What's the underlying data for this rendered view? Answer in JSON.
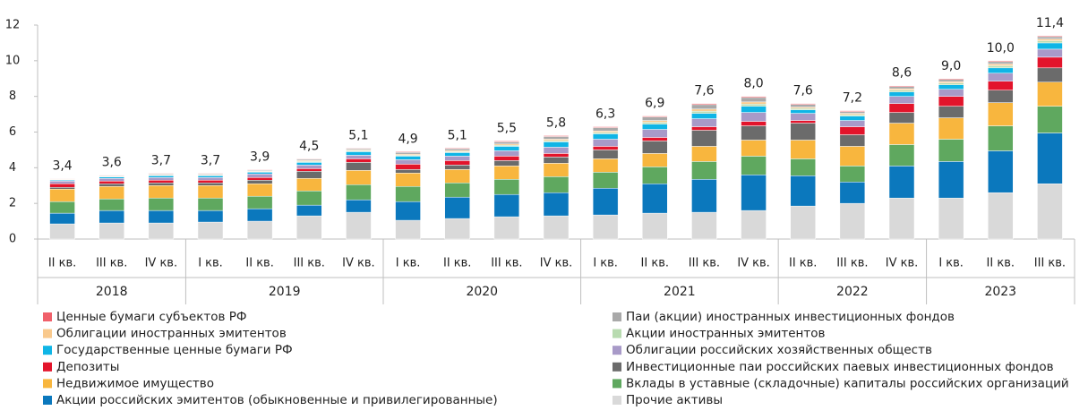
{
  "chart_data": {
    "type": "stacked_bar",
    "groups": [
      {
        "label": "2018",
        "categories": [
          "II кв.",
          "III кв.",
          "IV кв."
        ]
      },
      {
        "label": "2019",
        "categories": [
          "I кв.",
          "II кв.",
          "III кв.",
          "IV кв."
        ]
      },
      {
        "label": "2020",
        "categories": [
          "I кв.",
          "II кв.",
          "III кв.",
          "IV кв."
        ]
      },
      {
        "label": "2021",
        "categories": [
          "I кв.",
          "II кв.",
          "III кв.",
          "IV кв."
        ]
      },
      {
        "label": "2022",
        "categories": [
          "II кв.",
          "III кв.",
          "IV кв."
        ]
      },
      {
        "label": "2023",
        "categories": [
          "I кв.",
          "II кв.",
          "III кв."
        ]
      }
    ],
    "ylim": [
      0,
      12
    ],
    "yticks": [
      0,
      2,
      4,
      6,
      8,
      10,
      12
    ],
    "totals": [
      3.4,
      3.6,
      3.7,
      3.7,
      3.9,
      4.5,
      5.1,
      4.9,
      5.1,
      5.5,
      5.8,
      6.3,
      6.9,
      7.6,
      8.0,
      7.6,
      7.2,
      8.6,
      9.0,
      10.0,
      11.4
    ],
    "total_labels": [
      "3,4",
      "3,6",
      "3,7",
      "3,7",
      "3,9",
      "4,5",
      "5,1",
      "4,9",
      "5,1",
      "5,5",
      "5,8",
      "6,3",
      "6,9",
      "7,6",
      "8,0",
      "7,6",
      "7,2",
      "8,6",
      "9,0",
      "10,0",
      "11,4"
    ],
    "series": [
      {
        "name": "Прочие активы",
        "color": "#d9d9d9",
        "values": [
          0.85,
          0.9,
          0.9,
          0.95,
          1.0,
          1.3,
          1.5,
          1.05,
          1.15,
          1.25,
          1.3,
          1.35,
          1.45,
          1.5,
          1.6,
          1.85,
          2.0,
          2.3,
          2.3,
          2.6,
          3.1
        ]
      },
      {
        "name": "Акции российских эмитентов (обыкновенные и привилегированные)",
        "color": "#0b78bd",
        "values": [
          0.6,
          0.7,
          0.7,
          0.65,
          0.7,
          0.6,
          0.7,
          1.05,
          1.2,
          1.25,
          1.3,
          1.5,
          1.65,
          1.85,
          2.0,
          1.7,
          1.2,
          1.8,
          2.05,
          2.35,
          2.85
        ]
      },
      {
        "name": "Вклады в уставные (складочные) капиталы российских организаций",
        "color": "#5fa85f",
        "values": [
          0.65,
          0.65,
          0.7,
          0.7,
          0.7,
          0.8,
          0.85,
          0.85,
          0.8,
          0.85,
          0.9,
          0.9,
          0.95,
          1.0,
          1.05,
          0.95,
          0.9,
          1.2,
          1.25,
          1.4,
          1.5
        ]
      },
      {
        "name": "Недвижимое имущество",
        "color": "#f8b63e",
        "values": [
          0.7,
          0.7,
          0.7,
          0.7,
          0.7,
          0.7,
          0.8,
          0.75,
          0.75,
          0.75,
          0.75,
          0.75,
          0.75,
          0.85,
          0.9,
          1.05,
          1.1,
          1.2,
          1.2,
          1.3,
          1.35
        ]
      },
      {
        "name": "Инвестиционные паи российских паевых инвестиционных фондов",
        "color": "#6b6b6b",
        "values": [
          0.1,
          0.15,
          0.15,
          0.15,
          0.2,
          0.4,
          0.45,
          0.2,
          0.25,
          0.3,
          0.35,
          0.5,
          0.7,
          0.9,
          0.8,
          0.95,
          0.65,
          0.6,
          0.65,
          0.7,
          0.8
        ]
      },
      {
        "name": "Депозиты",
        "color": "#e3142b",
        "values": [
          0.2,
          0.15,
          0.15,
          0.15,
          0.15,
          0.15,
          0.2,
          0.3,
          0.25,
          0.25,
          0.2,
          0.2,
          0.2,
          0.2,
          0.25,
          0.15,
          0.45,
          0.5,
          0.55,
          0.5,
          0.6
        ]
      },
      {
        "name": "Облигации российских хозяйственных обществ",
        "color": "#a89ac8",
        "values": [
          0.15,
          0.15,
          0.15,
          0.15,
          0.2,
          0.2,
          0.2,
          0.25,
          0.25,
          0.3,
          0.35,
          0.4,
          0.45,
          0.45,
          0.5,
          0.4,
          0.35,
          0.4,
          0.4,
          0.45,
          0.45
        ]
      },
      {
        "name": "Государственные ценные бумаги РФ",
        "color": "#0fb5e6",
        "values": [
          0.05,
          0.08,
          0.1,
          0.1,
          0.1,
          0.15,
          0.2,
          0.2,
          0.2,
          0.25,
          0.3,
          0.3,
          0.3,
          0.3,
          0.35,
          0.2,
          0.25,
          0.25,
          0.25,
          0.3,
          0.35
        ]
      },
      {
        "name": "Акции иностранных эмитентов",
        "color": "#b8dbb0",
        "values": [
          0.02,
          0.03,
          0.03,
          0.03,
          0.03,
          0.05,
          0.05,
          0.05,
          0.05,
          0.06,
          0.07,
          0.08,
          0.1,
          0.12,
          0.12,
          0.08,
          0.08,
          0.1,
          0.1,
          0.12,
          0.12
        ]
      },
      {
        "name": "Облигации иностранных эмитентов",
        "color": "#f9c98d",
        "values": [
          0.03,
          0.03,
          0.04,
          0.04,
          0.04,
          0.05,
          0.05,
          0.06,
          0.06,
          0.07,
          0.08,
          0.08,
          0.1,
          0.12,
          0.12,
          0.07,
          0.07,
          0.08,
          0.08,
          0.1,
          0.1
        ]
      },
      {
        "name": "Паи (акции) иностранных инвестиционных фондов",
        "color": "#a9a9a9",
        "values": [
          0.03,
          0.04,
          0.05,
          0.05,
          0.05,
          0.07,
          0.07,
          0.1,
          0.1,
          0.12,
          0.15,
          0.19,
          0.2,
          0.25,
          0.25,
          0.15,
          0.1,
          0.12,
          0.12,
          0.13,
          0.13
        ]
      },
      {
        "name": "Ценные бумаги субъектов РФ",
        "color": "#f0606a",
        "values": [
          0.02,
          0.02,
          0.03,
          0.03,
          0.03,
          0.03,
          0.03,
          0.04,
          0.04,
          0.05,
          0.05,
          0.05,
          0.05,
          0.06,
          0.06,
          0.05,
          0.05,
          0.05,
          0.05,
          0.05,
          0.05
        ]
      }
    ]
  }
}
